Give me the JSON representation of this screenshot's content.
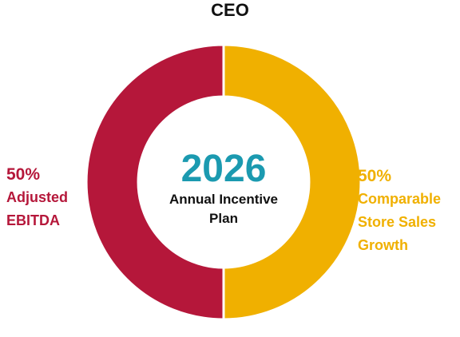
{
  "chart_data": {
    "type": "donut",
    "title": "CEO",
    "center_title": "2026",
    "center_subtitle": "Annual Incentive Plan",
    "categories": [
      "Adjusted EBITDA",
      "Comparable Store Sales Growth"
    ],
    "values": [
      50,
      50
    ],
    "value_labels": [
      "50%",
      "50%"
    ],
    "colors": [
      "#b5173a",
      "#f0b000"
    ]
  }
}
